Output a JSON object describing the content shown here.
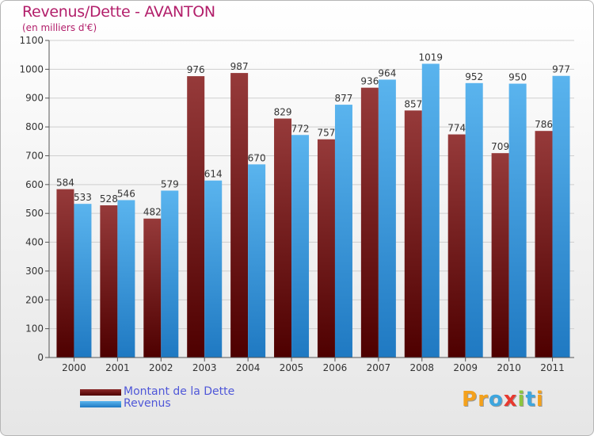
{
  "title": "Revenus/Dette - AVANTON",
  "subtitle": "(en milliers d'€)",
  "logo": {
    "text": "Proxiti",
    "letters": [
      {
        "ch": "P",
        "color": "#f4a11c"
      },
      {
        "ch": "r",
        "color": "#f4a11c"
      },
      {
        "ch": "o",
        "color": "#3ea6de"
      },
      {
        "ch": "x",
        "color": "#e8392f"
      },
      {
        "ch": "i",
        "color": "#8cc63f"
      },
      {
        "ch": "t",
        "color": "#3ea6de"
      },
      {
        "ch": "i",
        "color": "#f4a11c"
      }
    ]
  },
  "colors": {
    "dette": "#7a1111",
    "revenus": "#3f9fe0",
    "title": "#b21e6a",
    "legend_text": "#4f57d8"
  },
  "chart_data": {
    "type": "bar",
    "title": "Revenus/Dette - AVANTON",
    "subtitle": "(en milliers d'€)",
    "categories": [
      "2000",
      "2001",
      "2002",
      "2003",
      "2004",
      "2005",
      "2006",
      "2007",
      "2008",
      "2009",
      "2010",
      "2011"
    ],
    "series": [
      {
        "name": "Montant de la Dette",
        "values": [
          584,
          528,
          482,
          976,
          987,
          829,
          757,
          936,
          857,
          774,
          709,
          786
        ]
      },
      {
        "name": "Revenus",
        "values": [
          533,
          546,
          579,
          614,
          670,
          772,
          877,
          964,
          1019,
          952,
          950,
          977
        ]
      }
    ],
    "ylim": [
      0,
      1100
    ],
    "yticks": [
      0,
      100,
      200,
      300,
      400,
      500,
      600,
      700,
      800,
      900,
      1000,
      1100
    ],
    "grid": true,
    "legend": "bottom-left",
    "data_labels": true
  }
}
